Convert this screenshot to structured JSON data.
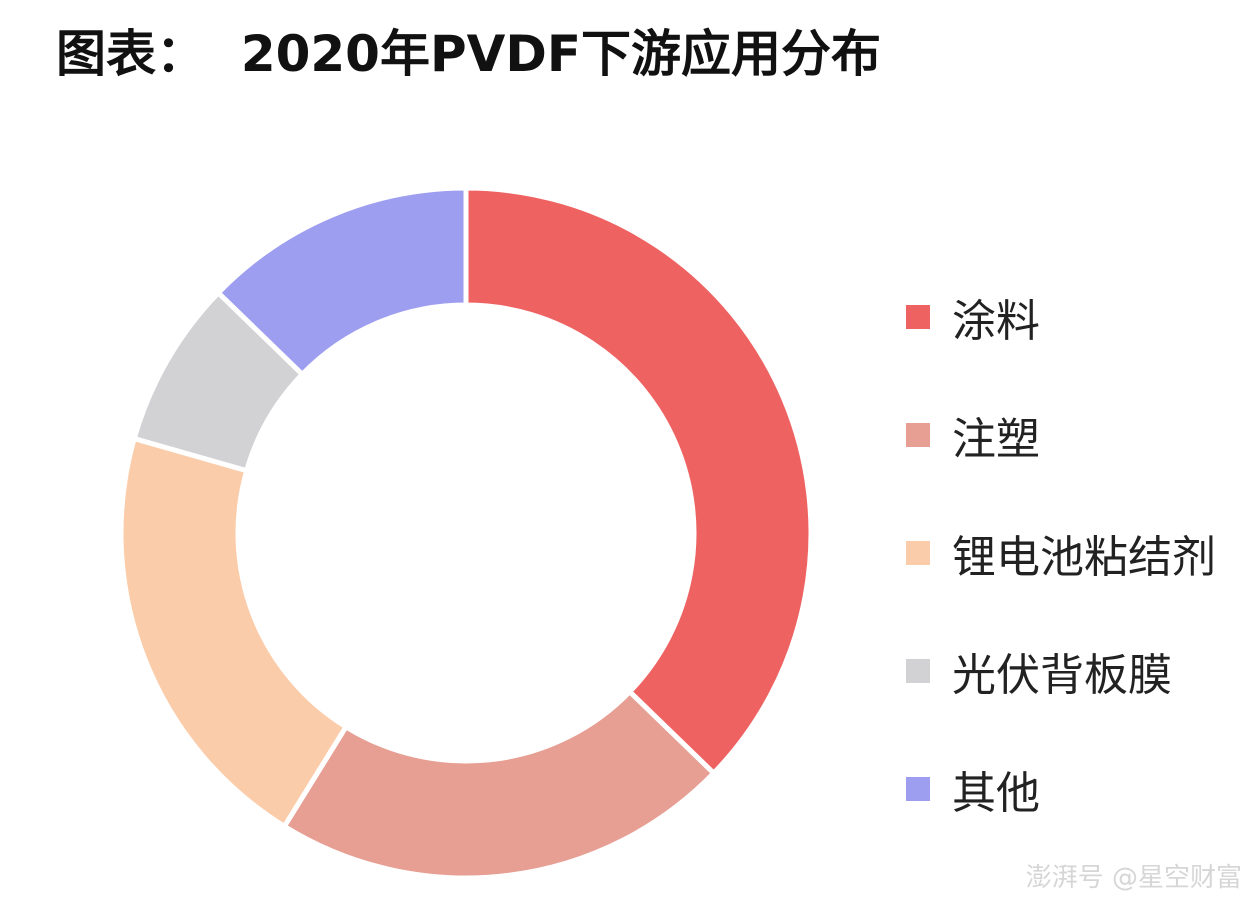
{
  "title": "图表：  2020年PVDF下游应用分布",
  "watermark": "澎湃号 @星空财富",
  "chart_data": {
    "type": "pie",
    "donut": true,
    "categories": [
      "涂料",
      "注塑",
      "锂电池粘结剂",
      "光伏背板膜",
      "其他"
    ],
    "values": [
      38,
      22,
      21,
      8,
      13
    ],
    "colors": [
      "#ef6262",
      "#e79e93",
      "#fbcca9",
      "#d2d1d4",
      "#9d9ef0"
    ],
    "legend_position": "right"
  }
}
